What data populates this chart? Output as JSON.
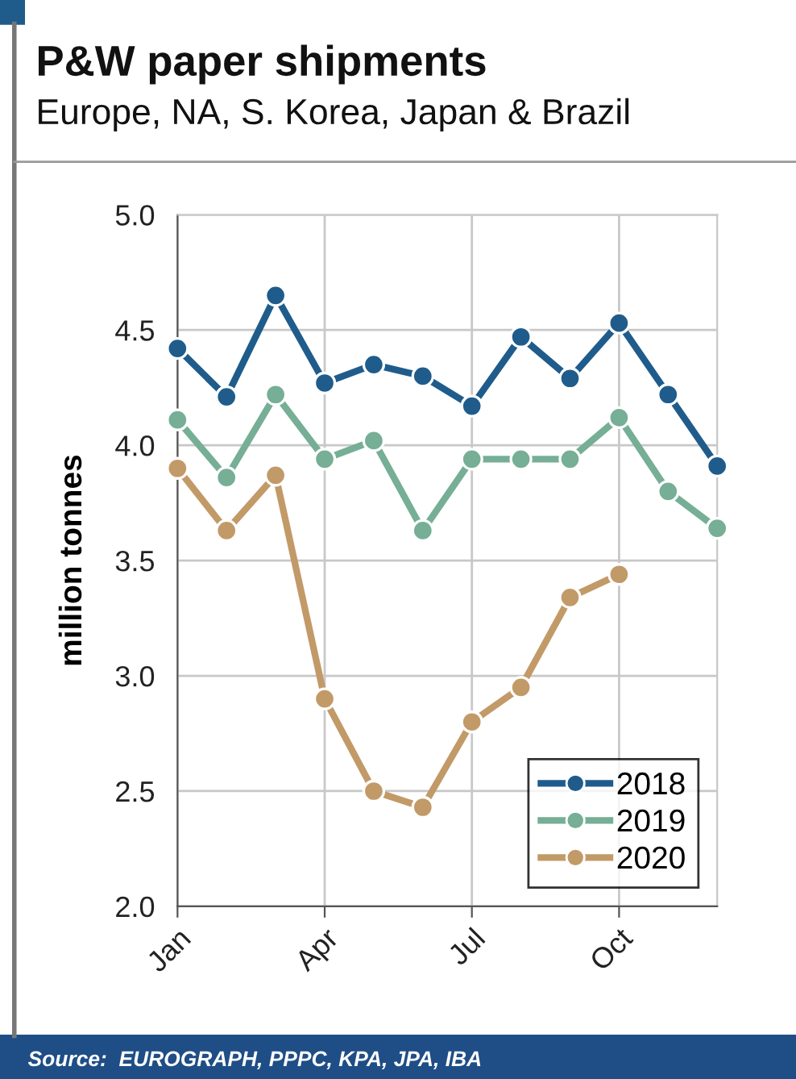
{
  "chart_data": {
    "type": "line",
    "title": "P&W paper shipments",
    "subtitle": "Europe, NA, S. Korea, Japan & Brazil",
    "ylabel": "million tonnes",
    "annotations": [
      "Source:  EUROGRAPH, PPPC, KPA, JPA, IBA"
    ],
    "categories": [
      "Jan",
      null,
      null,
      "Apr",
      null,
      null,
      "Jul",
      null,
      null,
      "Oct",
      null,
      null
    ],
    "series": [
      {
        "name": "2018",
        "color": "#1f5c8b",
        "values": [
          4.42,
          4.21,
          4.65,
          4.27,
          4.35,
          4.3,
          4.17,
          4.47,
          4.29,
          4.53,
          4.22,
          3.91
        ]
      },
      {
        "name": "2019",
        "color": "#76ae96",
        "values": [
          4.11,
          3.86,
          4.22,
          3.94,
          4.02,
          3.63,
          3.94,
          3.94,
          3.94,
          4.12,
          3.8,
          3.64
        ]
      },
      {
        "name": "2020",
        "color": "#c29a68",
        "values": [
          3.9,
          3.63,
          3.87,
          2.9,
          2.5,
          2.43,
          2.8,
          2.95,
          3.34,
          3.44,
          null,
          null
        ]
      }
    ],
    "ylim": [
      2.0,
      5.0
    ],
    "yticks": [
      {
        "value": 2.0,
        "label": "2.0"
      },
      {
        "value": 2.5,
        "label": "2.5"
      },
      {
        "value": 3.0,
        "label": "3.0"
      },
      {
        "value": 3.5,
        "label": "3.5"
      },
      {
        "value": 4.0,
        "label": "4.0"
      },
      {
        "value": 4.5,
        "label": "4.5"
      },
      {
        "value": 5.0,
        "label": "5.0"
      }
    ],
    "grid": true,
    "legend": "bottom right",
    "marker": "circle",
    "line_style": "solid"
  }
}
